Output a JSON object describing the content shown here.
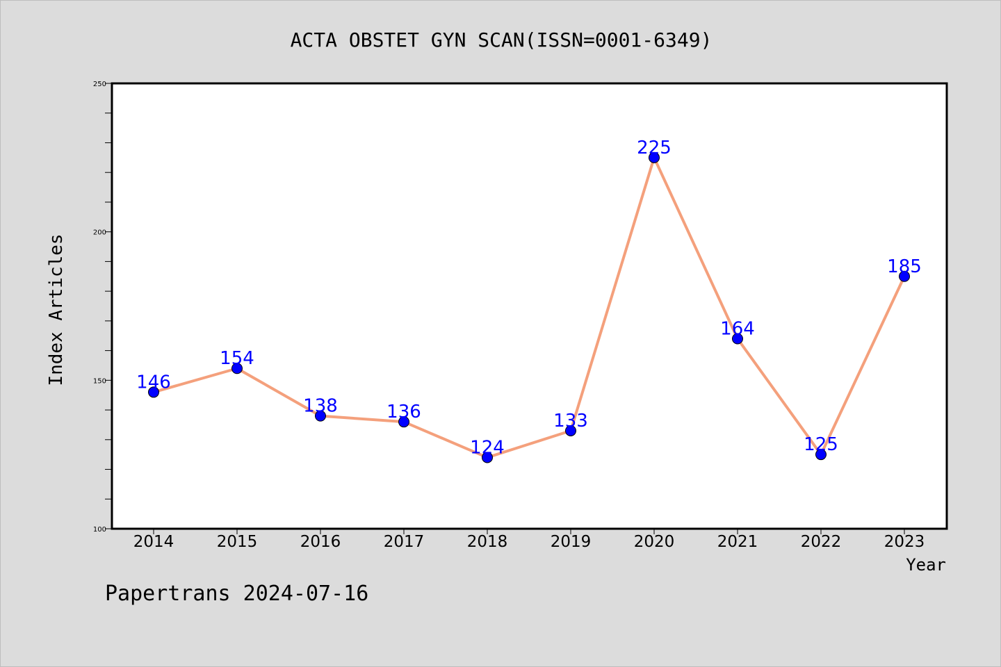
{
  "chart_data": {
    "type": "line",
    "title": "ACTA OBSTET GYN SCAN(ISSN=0001-6349)",
    "xlabel": "Year",
    "ylabel": "Index Articles",
    "categories": [
      "2014",
      "2015",
      "2016",
      "2017",
      "2018",
      "2019",
      "2020",
      "2021",
      "2022",
      "2023"
    ],
    "values": [
      146,
      154,
      138,
      136,
      124,
      133,
      225,
      164,
      125,
      185
    ],
    "ylim": [
      100,
      250
    ],
    "yticks": [
      "100",
      "150",
      "200",
      "250"
    ],
    "grid": false,
    "line_color": "#f4a07c",
    "marker_color": "#0000ff",
    "label_color": "#0000ff"
  },
  "footer": "Papertrans 2024-07-16"
}
